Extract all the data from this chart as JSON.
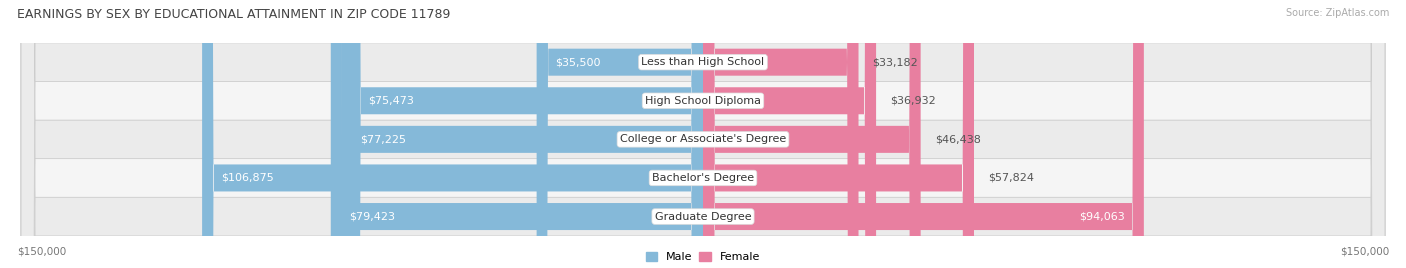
{
  "title": "EARNINGS BY SEX BY EDUCATIONAL ATTAINMENT IN ZIP CODE 11789",
  "source": "Source: ZipAtlas.com",
  "categories": [
    "Less than High School",
    "High School Diploma",
    "College or Associate's Degree",
    "Bachelor's Degree",
    "Graduate Degree"
  ],
  "male_values": [
    35500,
    75473,
    77225,
    106875,
    79423
  ],
  "female_values": [
    33182,
    36932,
    46438,
    57824,
    94063
  ],
  "male_color": "#85b9d9",
  "female_color": "#e87fa0",
  "row_bg_even": "#ebebeb",
  "row_bg_odd": "#f5f5f5",
  "max_value": 150000,
  "xlabel_left": "$150,000",
  "xlabel_right": "$150,000",
  "legend_male": "Male",
  "legend_female": "Female",
  "title_fontsize": 9,
  "label_fontsize": 8,
  "value_fontsize": 8,
  "bg_color": "#ffffff",
  "title_color": "#444444",
  "value_color_outside": "#555555",
  "value_color_inside": "#ffffff"
}
